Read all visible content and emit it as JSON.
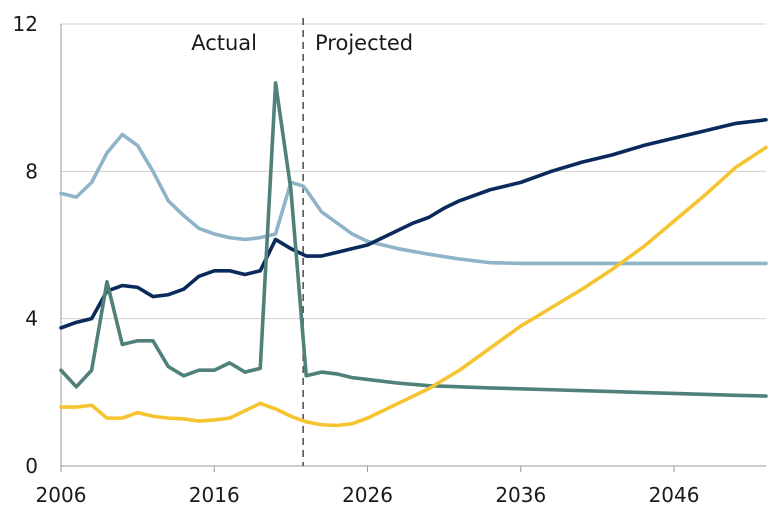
{
  "chart_data": {
    "type": "line",
    "title": "",
    "xlabel": "",
    "ylabel": "",
    "xlim": [
      2006,
      2052
    ],
    "ylim": [
      0,
      12
    ],
    "x_ticks": [
      2006,
      2016,
      2026,
      2036,
      2046
    ],
    "y_ticks": [
      0,
      4,
      8,
      12
    ],
    "gridlines": "horizontal",
    "divider_year": 2021.8,
    "annotations": {
      "left": "Actual",
      "right": "Projected"
    },
    "series": [
      {
        "name": "light-blue",
        "color": "#8fb4c7",
        "points": [
          [
            2006,
            7.4
          ],
          [
            2007,
            7.3
          ],
          [
            2008,
            7.7
          ],
          [
            2009,
            8.5
          ],
          [
            2010,
            9.0
          ],
          [
            2011,
            8.7
          ],
          [
            2012,
            8.0
          ],
          [
            2013,
            7.2
          ],
          [
            2014,
            6.8
          ],
          [
            2015,
            6.45
          ],
          [
            2016,
            6.3
          ],
          [
            2017,
            6.2
          ],
          [
            2018,
            6.15
          ],
          [
            2019,
            6.2
          ],
          [
            2020,
            6.3
          ],
          [
            2021,
            7.7
          ],
          [
            2021.8,
            7.6
          ],
          [
            2022,
            7.5
          ],
          [
            2023,
            6.9
          ],
          [
            2024,
            6.6
          ],
          [
            2025,
            6.3
          ],
          [
            2026,
            6.1
          ],
          [
            2028,
            5.9
          ],
          [
            2030,
            5.75
          ],
          [
            2032,
            5.62
          ],
          [
            2034,
            5.52
          ],
          [
            2036,
            5.5
          ],
          [
            2040,
            5.5
          ],
          [
            2044,
            5.5
          ],
          [
            2048,
            5.5
          ],
          [
            2052,
            5.5
          ]
        ]
      },
      {
        "name": "dark-blue",
        "color": "#0b2a5c",
        "points": [
          [
            2006,
            3.75
          ],
          [
            2007,
            3.9
          ],
          [
            2008,
            4.0
          ],
          [
            2009,
            4.75
          ],
          [
            2010,
            4.9
          ],
          [
            2011,
            4.85
          ],
          [
            2012,
            4.6
          ],
          [
            2013,
            4.65
          ],
          [
            2014,
            4.8
          ],
          [
            2015,
            5.15
          ],
          [
            2016,
            5.3
          ],
          [
            2017,
            5.3
          ],
          [
            2018,
            5.2
          ],
          [
            2019,
            5.3
          ],
          [
            2020,
            6.15
          ],
          [
            2021,
            5.9
          ],
          [
            2022,
            5.7
          ],
          [
            2023,
            5.7
          ],
          [
            2024,
            5.8
          ],
          [
            2025,
            5.9
          ],
          [
            2026,
            6.0
          ],
          [
            2027,
            6.2
          ],
          [
            2028,
            6.4
          ],
          [
            2029,
            6.6
          ],
          [
            2030,
            6.75
          ],
          [
            2031,
            7.0
          ],
          [
            2032,
            7.2
          ],
          [
            2034,
            7.5
          ],
          [
            2036,
            7.7
          ],
          [
            2038,
            8.0
          ],
          [
            2040,
            8.25
          ],
          [
            2042,
            8.45
          ],
          [
            2044,
            8.7
          ],
          [
            2046,
            8.9
          ],
          [
            2048,
            9.1
          ],
          [
            2050,
            9.3
          ],
          [
            2052,
            9.4
          ]
        ]
      },
      {
        "name": "teal",
        "color": "#4f8079",
        "points": [
          [
            2006,
            2.6
          ],
          [
            2007,
            2.15
          ],
          [
            2008,
            2.6
          ],
          [
            2009,
            5.0
          ],
          [
            2010,
            3.3
          ],
          [
            2011,
            3.4
          ],
          [
            2012,
            3.4
          ],
          [
            2013,
            2.7
          ],
          [
            2014,
            2.45
          ],
          [
            2015,
            2.6
          ],
          [
            2016,
            2.6
          ],
          [
            2017,
            2.8
          ],
          [
            2018,
            2.55
          ],
          [
            2019,
            2.65
          ],
          [
            2020,
            10.4
          ],
          [
            2021,
            7.5
          ],
          [
            2022,
            2.45
          ],
          [
            2023,
            2.55
          ],
          [
            2024,
            2.5
          ],
          [
            2025,
            2.4
          ],
          [
            2026,
            2.35
          ],
          [
            2028,
            2.25
          ],
          [
            2030,
            2.18
          ],
          [
            2034,
            2.12
          ],
          [
            2038,
            2.07
          ],
          [
            2042,
            2.02
          ],
          [
            2046,
            1.97
          ],
          [
            2050,
            1.92
          ],
          [
            2052,
            1.9
          ]
        ]
      },
      {
        "name": "yellow",
        "color": "#f6c431",
        "points": [
          [
            2006,
            1.6
          ],
          [
            2007,
            1.6
          ],
          [
            2008,
            1.65
          ],
          [
            2009,
            1.3
          ],
          [
            2010,
            1.3
          ],
          [
            2011,
            1.45
          ],
          [
            2012,
            1.35
          ],
          [
            2013,
            1.3
          ],
          [
            2014,
            1.28
          ],
          [
            2015,
            1.22
          ],
          [
            2016,
            1.25
          ],
          [
            2017,
            1.3
          ],
          [
            2018,
            1.5
          ],
          [
            2019,
            1.7
          ],
          [
            2020,
            1.55
          ],
          [
            2021,
            1.35
          ],
          [
            2022,
            1.2
          ],
          [
            2023,
            1.12
          ],
          [
            2024,
            1.1
          ],
          [
            2025,
            1.15
          ],
          [
            2026,
            1.3
          ],
          [
            2028,
            1.7
          ],
          [
            2030,
            2.1
          ],
          [
            2032,
            2.6
          ],
          [
            2034,
            3.2
          ],
          [
            2036,
            3.8
          ],
          [
            2038,
            4.3
          ],
          [
            2040,
            4.8
          ],
          [
            2042,
            5.35
          ],
          [
            2044,
            5.95
          ],
          [
            2046,
            6.65
          ],
          [
            2048,
            7.35
          ],
          [
            2050,
            8.1
          ],
          [
            2052,
            8.65
          ]
        ]
      }
    ]
  }
}
